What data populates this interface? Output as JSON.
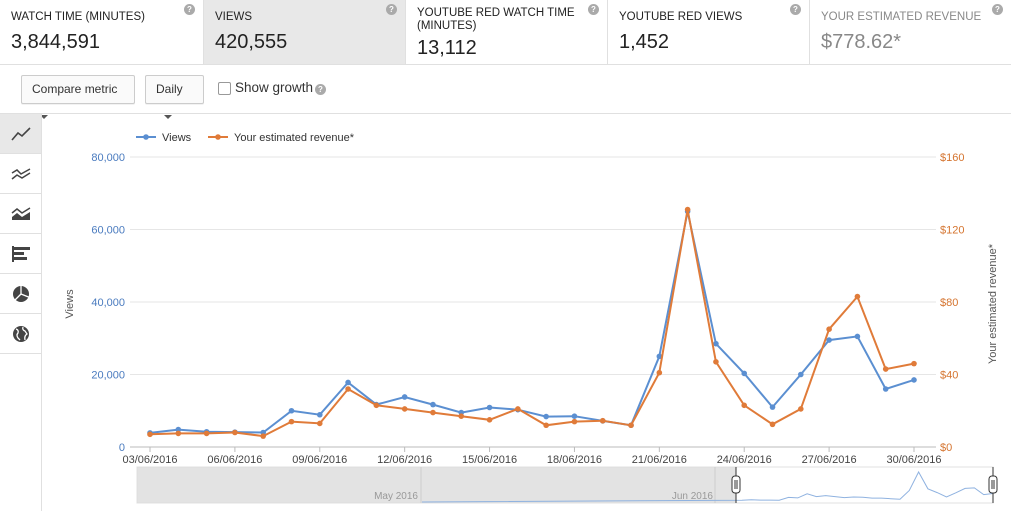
{
  "metrics": [
    {
      "label": "WATCH TIME (MINUTES)",
      "value": "3,844,591",
      "selected": false
    },
    {
      "label": "VIEWS",
      "value": "420,555",
      "selected": true
    },
    {
      "label": "YOUTUBE RED WATCH TIME (MINUTES)",
      "value": "13,112",
      "selected": false
    },
    {
      "label": "YOUTUBE RED VIEWS",
      "value": "1,452",
      "selected": false
    },
    {
      "label": "YOUR ESTIMATED REVENUE",
      "value": "$778.62*",
      "selected": false
    }
  ],
  "help_glyph": "?",
  "toolbar": {
    "compare_metric": "Compare metric",
    "interval": "Daily",
    "show_growth": "Show growth"
  },
  "chart_types": [
    "line-chart-icon",
    "multiline-chart-icon",
    "stacked-area-icon",
    "bar-chart-icon",
    "pie-chart-icon",
    "map-globe-icon"
  ],
  "colors": {
    "views": "#5b8fd1",
    "revenue": "#e07b39"
  },
  "chart_data": {
    "type": "line",
    "x": [
      "03/06/2016",
      "04/06/2016",
      "05/06/2016",
      "06/06/2016",
      "07/06/2016",
      "08/06/2016",
      "09/06/2016",
      "10/06/2016",
      "11/06/2016",
      "12/06/2016",
      "13/06/2016",
      "14/06/2016",
      "15/06/2016",
      "16/06/2016",
      "17/06/2016",
      "18/06/2016",
      "19/06/2016",
      "20/06/2016",
      "21/06/2016",
      "22/06/2016",
      "23/06/2016",
      "24/06/2016",
      "25/06/2016",
      "26/06/2016",
      "27/06/2016",
      "28/06/2016",
      "29/06/2016",
      "30/06/2016"
    ],
    "x_tick_labels": [
      "03/06/2016",
      "06/06/2016",
      "09/06/2016",
      "12/06/2016",
      "15/06/2016",
      "18/06/2016",
      "21/06/2016",
      "24/06/2016",
      "27/06/2016",
      "30/06/2016"
    ],
    "series": [
      {
        "name": "Views",
        "axis": "left",
        "values": [
          3900,
          4800,
          4200,
          4100,
          4000,
          10000,
          8900,
          17800,
          11700,
          13800,
          11700,
          9500,
          10900,
          10300,
          8400,
          8500,
          7200,
          6000,
          25000,
          65000,
          28500,
          20300,
          11000,
          20000,
          29500,
          30500,
          16000,
          18500
        ]
      },
      {
        "name": "Your estimated revenue*",
        "axis": "right",
        "values": [
          7,
          7.5,
          7.5,
          8,
          6,
          14,
          13,
          32,
          23,
          21,
          19,
          17,
          15,
          21,
          12,
          14,
          14.5,
          12,
          41,
          131,
          47,
          23,
          12.5,
          21,
          65,
          83,
          43,
          46
        ]
      }
    ],
    "y_left": {
      "label": "Views",
      "min": 0,
      "max": 80000,
      "ticks": [
        "0",
        "20,000",
        "40,000",
        "60,000",
        "80,000"
      ]
    },
    "y_right": {
      "label": "Your estimated revenue*",
      "min": 0,
      "max": 160,
      "ticks": [
        "$0",
        "$40",
        "$80",
        "$120",
        "$160"
      ]
    },
    "legend_position": "top-left",
    "grid": true,
    "navigator": {
      "labels": [
        "May 2016",
        "Jun 2016"
      ]
    }
  }
}
